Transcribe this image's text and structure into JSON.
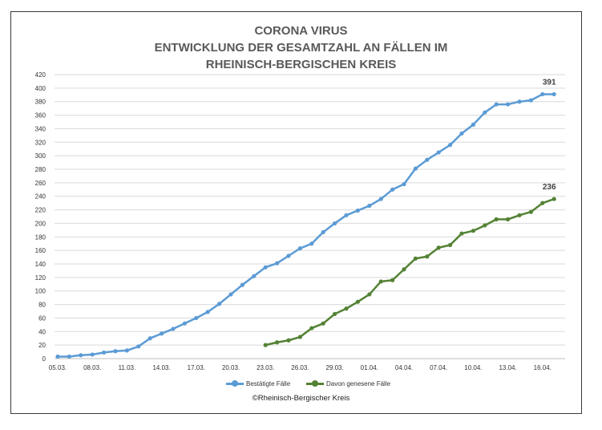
{
  "chart_data": {
    "type": "line",
    "title": [
      "CORONA VIRUS",
      "ENTWICKLUNG DER GESAMTZAHL AN FÄLLEN IM",
      "RHEINISCH-BERGISCHEN KREIS"
    ],
    "x_tick_labels": [
      "05.03.",
      "08.03.",
      "11.03.",
      "14.03.",
      "17.03.",
      "20.03.",
      "23.03.",
      "26.03.",
      "29.03.",
      "01.04.",
      "04.04.",
      "07.04.",
      "10.04.",
      "13.04.",
      "16.04."
    ],
    "x_tick_step_days": 3,
    "ylim": [
      0,
      420
    ],
    "y_ticks": [
      0,
      20,
      40,
      60,
      80,
      100,
      120,
      140,
      160,
      180,
      200,
      220,
      240,
      260,
      280,
      300,
      320,
      340,
      360,
      380,
      400,
      420
    ],
    "grid": "horizontal",
    "series": [
      {
        "name": "Bestätigte Fälle",
        "color": "#5b9bd5",
        "start_day_index": 0,
        "values": [
          3,
          3,
          5,
          6,
          9,
          11,
          12,
          18,
          30,
          37,
          44,
          52,
          60,
          69,
          81,
          95,
          109,
          122,
          135,
          141,
          152,
          163,
          170,
          187,
          200,
          212,
          219,
          226,
          236,
          250,
          258,
          281,
          294,
          305,
          316,
          333,
          346,
          364,
          376,
          376,
          380,
          382,
          391,
          391
        ],
        "end_label": "391"
      },
      {
        "name": "Davon genesene Fälle",
        "color": "#548235",
        "start_day_index": 18,
        "values": [
          20,
          24,
          27,
          32,
          45,
          52,
          66,
          74,
          84,
          95,
          114,
          116,
          132,
          148,
          151,
          164,
          168,
          185,
          189,
          197,
          206,
          206,
          212,
          217,
          230,
          236
        ],
        "end_label": "236"
      }
    ],
    "legend_position": "bottom-center"
  },
  "copyright": "©Rheinisch-Bergischer Kreis"
}
